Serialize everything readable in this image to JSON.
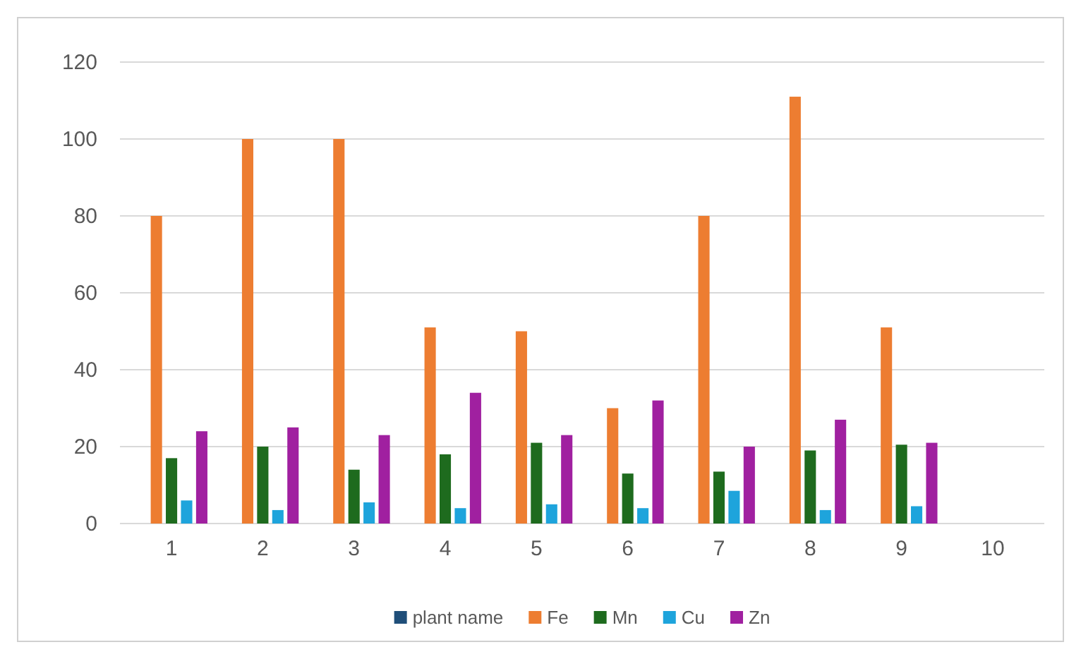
{
  "chart_data": {
    "type": "bar",
    "categories": [
      "1",
      "2",
      "3",
      "4",
      "5",
      "6",
      "7",
      "8",
      "9",
      "10"
    ],
    "series": [
      {
        "name": "plant name",
        "color": "#1f4e79",
        "values": [
          0,
          0,
          0,
          0,
          0,
          0,
          0,
          0,
          0,
          null
        ]
      },
      {
        "name": "Fe",
        "color": "#ed7d31",
        "values": [
          80,
          100,
          100,
          51,
          50,
          30,
          80,
          111,
          51,
          null
        ]
      },
      {
        "name": "Mn",
        "color": "#1e6b1e",
        "values": [
          17,
          20,
          14,
          18,
          21,
          13,
          13.5,
          19,
          20.5,
          null
        ]
      },
      {
        "name": "Cu",
        "color": "#1ea4dc",
        "values": [
          6,
          3.5,
          5.5,
          4,
          5,
          4,
          8.5,
          3.5,
          4.5,
          null
        ]
      },
      {
        "name": "Zn",
        "color": "#a020a0",
        "values": [
          24,
          25,
          23,
          34,
          23,
          32,
          20,
          27,
          21,
          null
        ]
      }
    ],
    "ylim": [
      0,
      120
    ],
    "yticks": [
      0,
      20,
      40,
      60,
      80,
      100,
      120
    ],
    "grid": "y",
    "legend": "bottom"
  }
}
